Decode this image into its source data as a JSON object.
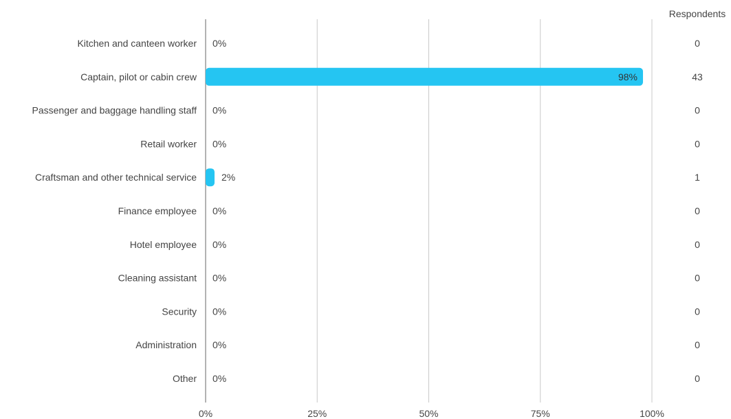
{
  "chart_data": {
    "type": "bar",
    "orientation": "horizontal",
    "categories": [
      "Kitchen and canteen worker",
      "Captain, pilot or cabin crew",
      "Passenger and baggage handling staff",
      "Retail worker",
      "Craftsman and other technical service",
      "Finance employee",
      "Hotel employee",
      "Cleaning assistant",
      "Security",
      "Administration",
      "Other"
    ],
    "values": [
      0,
      98,
      0,
      0,
      2,
      0,
      0,
      0,
      0,
      0,
      0
    ],
    "value_labels": [
      "0%",
      "98%",
      "0%",
      "0%",
      "2%",
      "0%",
      "0%",
      "0%",
      "0%",
      "0%",
      "0%"
    ],
    "respondents_header": "Respondents",
    "respondents": [
      "0",
      "43",
      "0",
      "0",
      "1",
      "0",
      "0",
      "0",
      "0",
      "0",
      "0"
    ],
    "xlim": [
      0,
      100
    ],
    "x_ticks": [
      0,
      25,
      50,
      75,
      100
    ],
    "x_tick_labels": [
      "0%",
      "25%",
      "50%",
      "75%",
      "100%"
    ],
    "grid": true,
    "bar_color": "#25c5f2"
  }
}
